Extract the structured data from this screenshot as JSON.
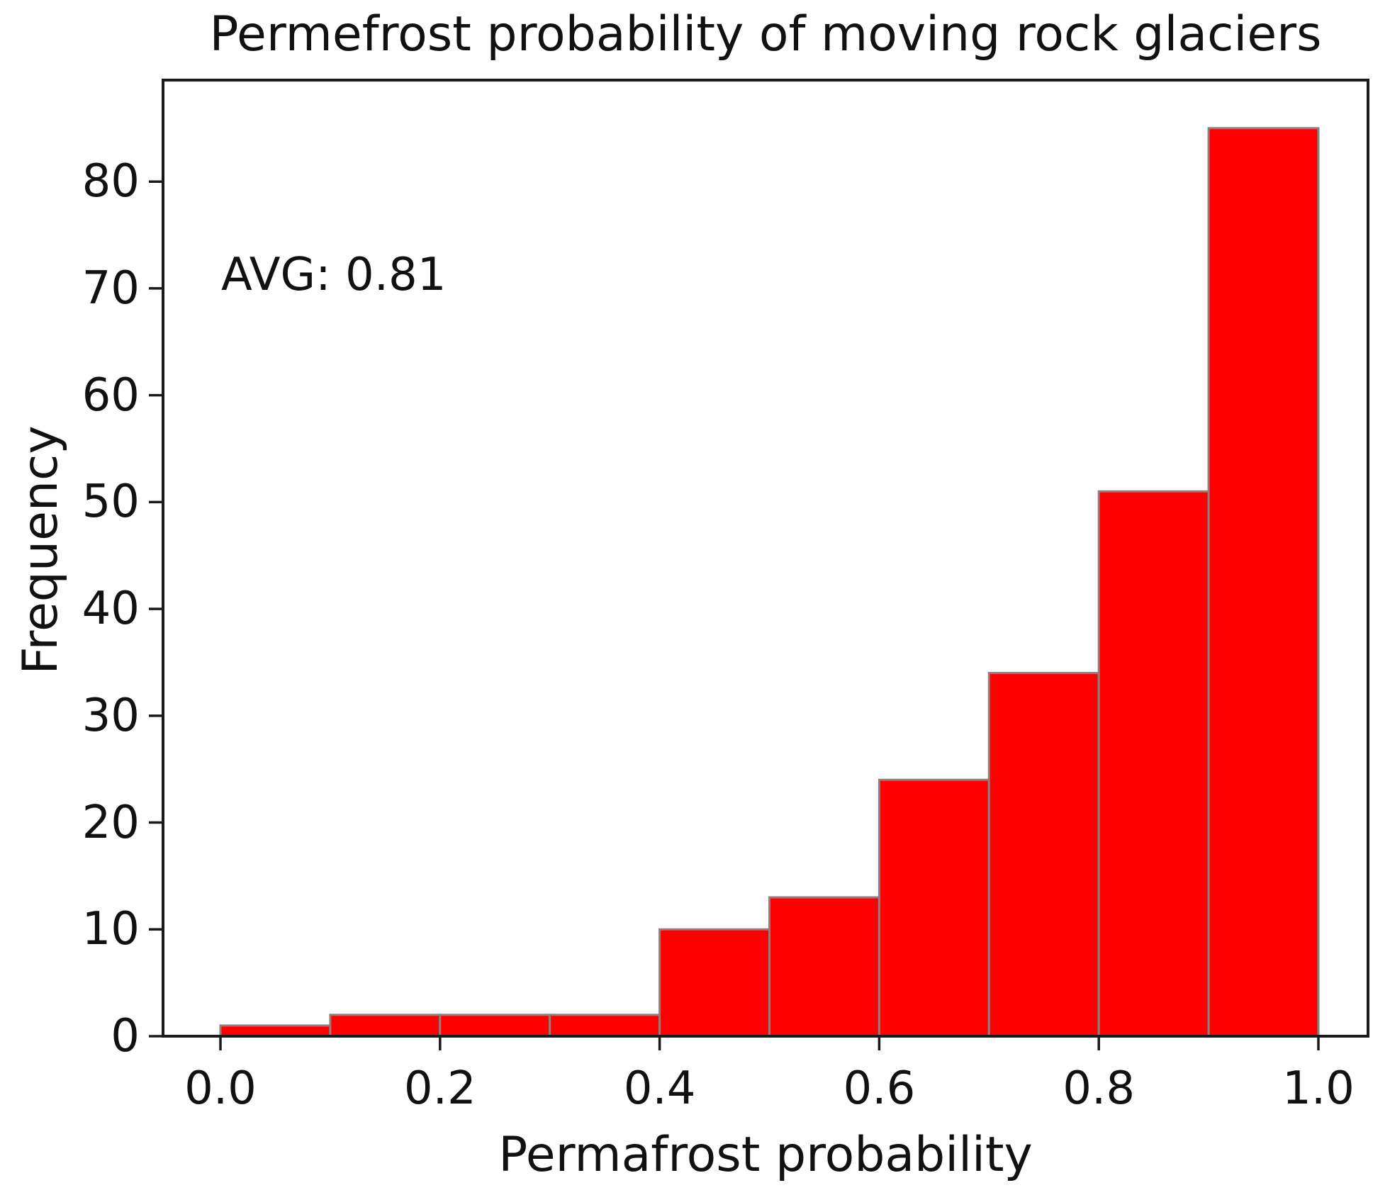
{
  "chart_data": {
    "type": "bar",
    "subtype": "histogram",
    "title": "Permefrost probability of moving rock glaciers",
    "xlabel": "Permafrost probability",
    "ylabel": "Frequency",
    "annotation": "AVG: 0.81",
    "bin_edges": [
      0.0,
      0.1,
      0.2,
      0.3,
      0.4,
      0.5,
      0.6,
      0.7,
      0.8,
      0.9,
      1.0
    ],
    "values": [
      1,
      2,
      2,
      2,
      10,
      13,
      24,
      34,
      51,
      85
    ],
    "x_ticks": [
      {
        "value": 0.0,
        "label": "0.0"
      },
      {
        "value": 0.2,
        "label": "0.2"
      },
      {
        "value": 0.4,
        "label": "0.4"
      },
      {
        "value": 0.6,
        "label": "0.6"
      },
      {
        "value": 0.8,
        "label": "0.8"
      },
      {
        "value": 1.0,
        "label": "1.0"
      }
    ],
    "y_ticks": [
      {
        "value": 0,
        "label": "0"
      },
      {
        "value": 10,
        "label": "10"
      },
      {
        "value": 20,
        "label": "20"
      },
      {
        "value": 30,
        "label": "30"
      },
      {
        "value": 40,
        "label": "40"
      },
      {
        "value": 50,
        "label": "50"
      },
      {
        "value": 60,
        "label": "60"
      },
      {
        "value": 70,
        "label": "70"
      },
      {
        "value": 80,
        "label": "80"
      }
    ],
    "xlim": [
      -0.0523,
      1.0452
    ],
    "ylim": [
      0,
      89.5
    ],
    "grid": false,
    "legend": false,
    "bar_color": "#ff0000",
    "bar_edge_color": "#848484",
    "axis_color": "#1a1a1a",
    "background_color": "#ffffff"
  }
}
